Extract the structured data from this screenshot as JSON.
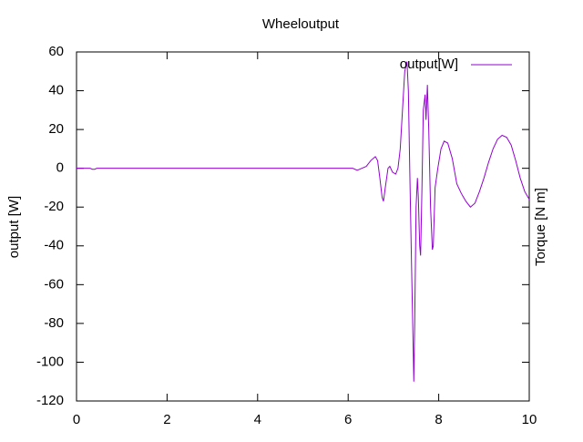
{
  "chart_data": {
    "type": "line",
    "title": "Wheeloutput",
    "ylabel": "output [W]",
    "y2label": "Torque [N m]",
    "x": [
      0,
      0.3,
      0.35,
      0.4,
      0.45,
      6.0,
      6.1,
      6.2,
      6.3,
      6.4,
      6.5,
      6.6,
      6.65,
      6.7,
      6.75,
      6.78,
      6.82,
      6.88,
      6.92,
      6.98,
      7.05,
      7.1,
      7.15,
      7.2,
      7.25,
      7.3,
      7.33,
      7.36,
      7.4,
      7.43,
      7.45,
      7.47,
      7.5,
      7.53,
      7.55,
      7.58,
      7.6,
      7.63,
      7.66,
      7.7,
      7.72,
      7.75,
      7.78,
      7.82,
      7.86,
      7.88,
      7.92,
      7.98,
      8.05,
      8.12,
      8.2,
      8.3,
      8.4,
      8.5,
      8.6,
      8.7,
      8.8,
      8.9,
      9.0,
      9.1,
      9.2,
      9.3,
      9.4,
      9.5,
      9.6,
      9.7,
      9.8,
      9.9,
      10
    ],
    "series": [
      {
        "name": "output[W]",
        "color": "#9400d3",
        "values": [
          0,
          0,
          -0.5,
          -0.5,
          0,
          0,
          0,
          -1,
          0,
          1,
          4,
          6,
          4,
          -5,
          -15,
          -17,
          -10,
          0,
          1,
          -2,
          -3,
          0,
          10,
          30,
          50,
          55,
          40,
          0,
          -50,
          -85,
          -110,
          -80,
          -20,
          -5,
          -15,
          -40,
          -45,
          -10,
          30,
          38,
          25,
          43,
          20,
          -20,
          -42,
          -40,
          -10,
          0,
          10,
          14,
          13,
          5,
          -8,
          -13,
          -17,
          -20,
          -18,
          -12,
          -5,
          3,
          10,
          15,
          17,
          16,
          12,
          4,
          -5,
          -12,
          -16
        ]
      }
    ],
    "xlim": [
      0,
      10
    ],
    "xticks": [
      0,
      2,
      4,
      6,
      8,
      10
    ],
    "ylim": [
      -120,
      60
    ],
    "yticks": [
      -120,
      -100,
      -80,
      -60,
      -40,
      -20,
      0,
      20,
      40,
      60
    ],
    "legend": "top-right"
  }
}
